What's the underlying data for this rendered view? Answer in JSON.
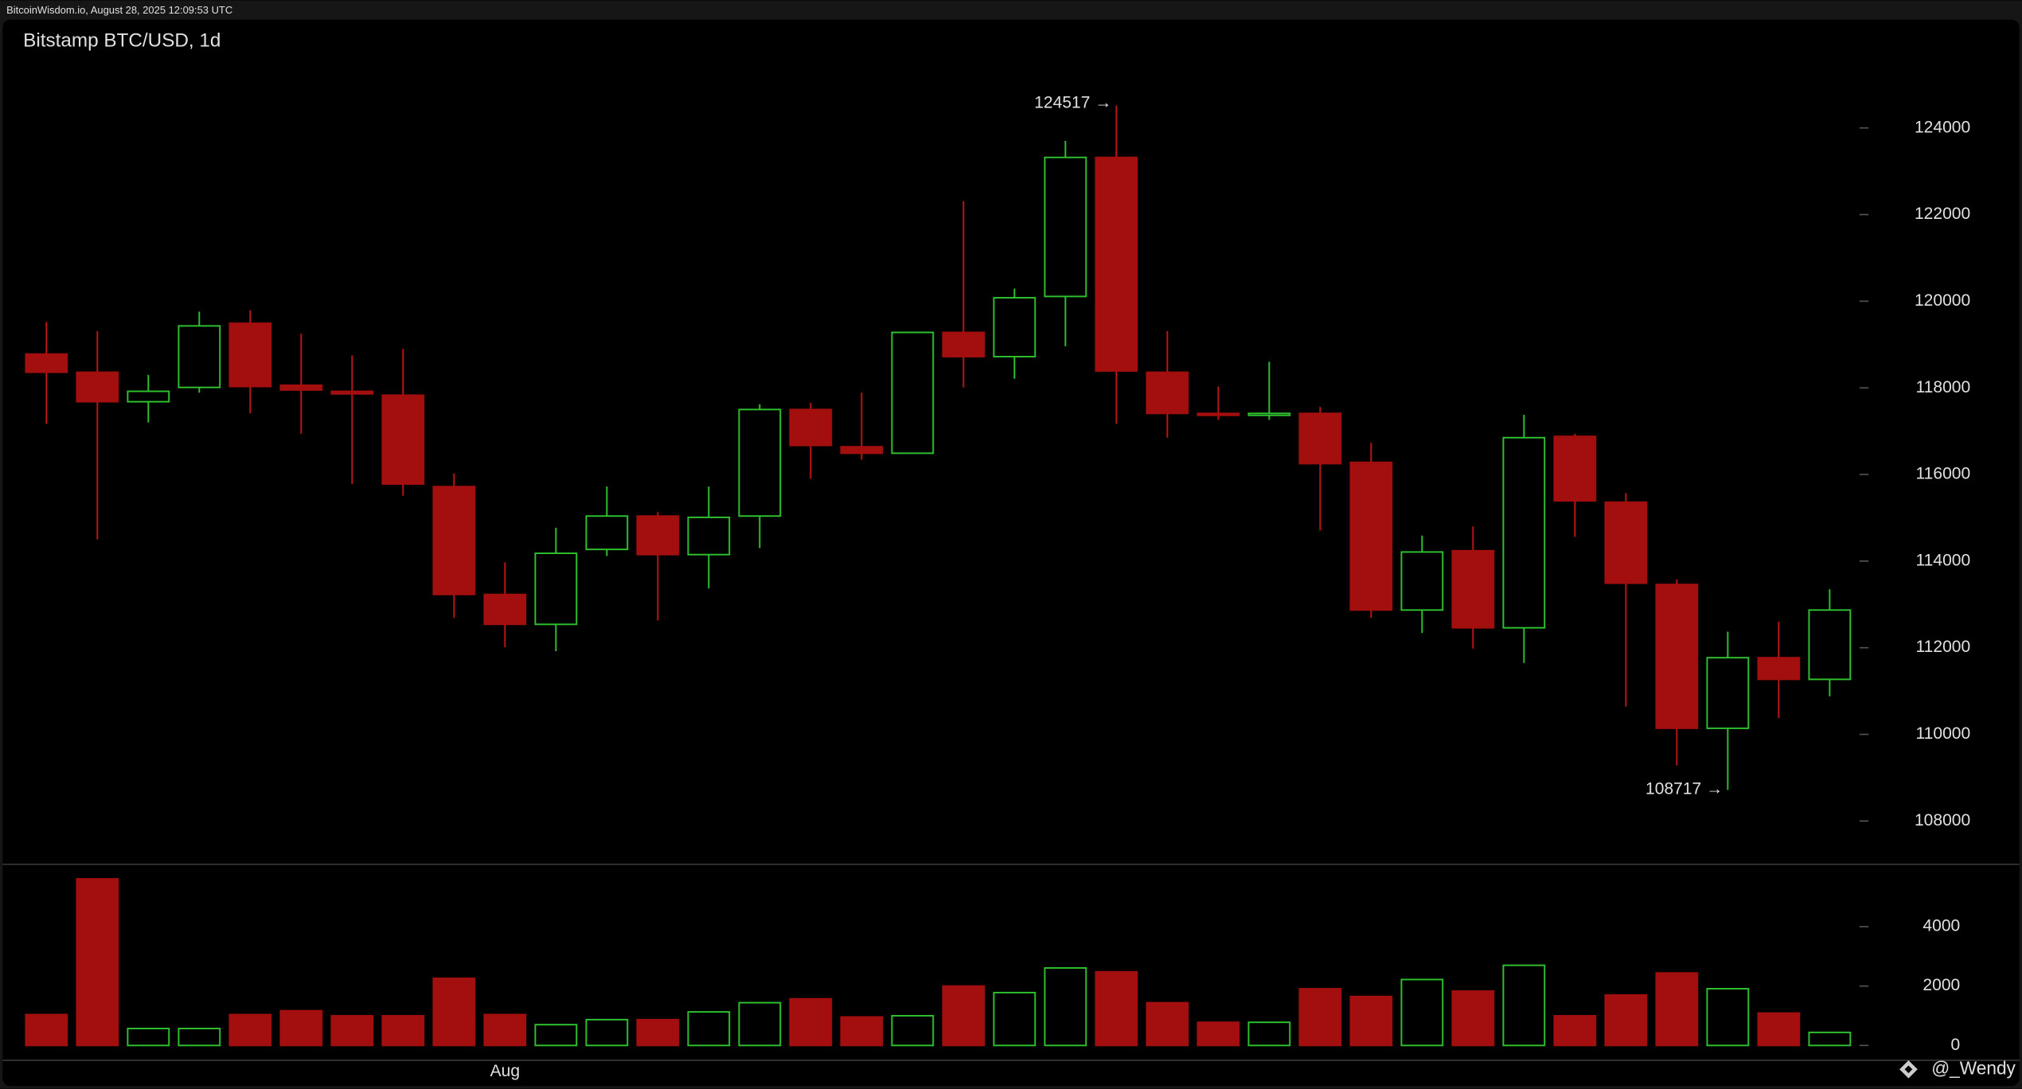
{
  "header": "BitcoinWisdom.io, August 28, 2025 12:09:53 UTC",
  "watermark": "@_Wendy",
  "chart_data": {
    "type": "candlestick",
    "title": "Bitstamp BTC/USD, 1d",
    "annotations": [
      "124517 →",
      "108717 →"
    ],
    "categories": [
      null,
      null,
      null,
      null,
      null,
      null,
      null,
      null,
      null,
      "Aug",
      null,
      null,
      null,
      null,
      null,
      null,
      null,
      null,
      null,
      null,
      null,
      null,
      null,
      null,
      null,
      null,
      null,
      null,
      null,
      null,
      null,
      null,
      null,
      null,
      null,
      null
    ],
    "up_color": "#2fc22f",
    "down_color": "#a30f0f",
    "open": [
      118780,
      118360,
      117680,
      118010,
      119490,
      118060,
      117920,
      117830,
      115720,
      113230,
      112540,
      114270,
      115040,
      114150,
      115040,
      117500,
      116640,
      116490,
      119280,
      118720,
      120110,
      123320,
      118360,
      117410,
      117380,
      117410,
      116280,
      112870,
      114240,
      112460,
      116880,
      115360,
      113460,
      110140,
      111770,
      111270
    ],
    "high": [
      119520,
      119310,
      118300,
      119760,
      119790,
      119250,
      118750,
      118900,
      116020,
      113970,
      114770,
      115720,
      115130,
      115720,
      117620,
      117650,
      117890,
      119280,
      122310,
      120290,
      123700,
      124517,
      119310,
      118030,
      118600,
      117560,
      116730,
      114590,
      114800,
      117380,
      116940,
      115570,
      113580,
      112370,
      112600,
      113350
    ],
    "low": [
      117170,
      114500,
      117200,
      117890,
      117410,
      116940,
      115780,
      115510,
      112690,
      112010,
      111920,
      114120,
      112630,
      113370,
      114300,
      115900,
      116340,
      116490,
      118010,
      118210,
      118960,
      117170,
      116850,
      117260,
      117260,
      114710,
      112690,
      112340,
      111980,
      111650,
      114560,
      110640,
      109280,
      108717,
      110380,
      110880
    ],
    "close": [
      118360,
      117680,
      117920,
      119430,
      118030,
      117950,
      117860,
      115780,
      113230,
      112540,
      114180,
      115040,
      114150,
      115010,
      117500,
      116670,
      116490,
      119280,
      118720,
      120080,
      123320,
      118390,
      117410,
      117380,
      117410,
      116250,
      112870,
      114210,
      112460,
      116850,
      115390,
      113490,
      110140,
      111770,
      111270,
      112870
    ],
    "volume": [
      1040,
      5610,
      570,
      570,
      1040,
      1170,
      1000,
      1000,
      2260,
      1040,
      700,
      870,
      870,
      1130,
      1440,
      1570,
      960,
      1000,
      2000,
      1780,
      2610,
      2480,
      1440,
      780,
      780,
      1910,
      1650,
      2220,
      1830,
      2700,
      1000,
      1700,
      2440,
      1910,
      1090,
      440
    ],
    "ylim": [
      107000,
      126500
    ],
    "yticks": [
      108000,
      110000,
      112000,
      114000,
      116000,
      118000,
      120000,
      122000,
      124000
    ],
    "volume_ylim": [
      -500,
      6100
    ],
    "volume_ticks": [
      0,
      2000,
      4000
    ],
    "grid": false
  }
}
